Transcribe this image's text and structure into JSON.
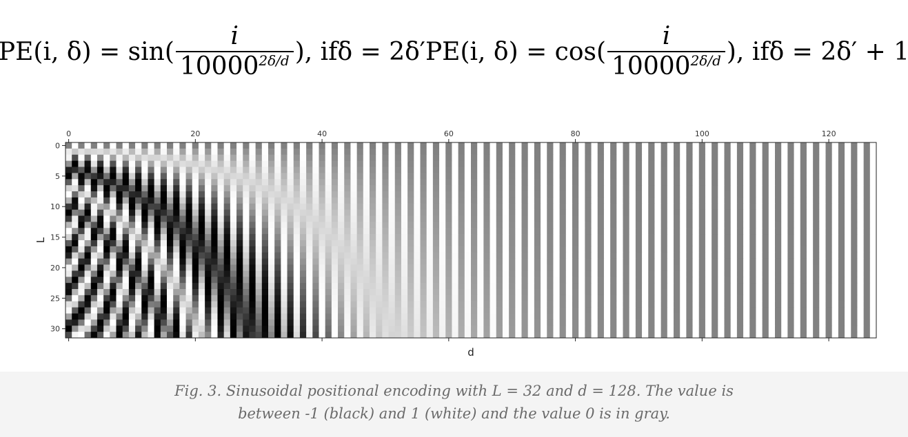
{
  "formula": {
    "part1": {
      "lhs": "PE(i, δ) = sin(",
      "numerator": "i",
      "denominator_base": "10000",
      "denominator_exp": "2δ/d",
      "rhs": "), ifδ = 2δ′"
    },
    "part2": {
      "lhs": "PE(i, δ) = cos(",
      "numerator": "i",
      "denominator_base": "10000",
      "denominator_exp": "2δ/d",
      "rhs": "), ifδ = 2δ′ + 1"
    }
  },
  "caption": {
    "line1": "Fig. 3. Sinusoidal positional encoding with L = 32 and d = 128. The value is",
    "line2": "between -1 (black) and 1 (white) and the value 0 is in gray."
  },
  "chart_data": {
    "type": "heatmap",
    "title": "",
    "xlabel": "d",
    "ylabel": "L",
    "rows": 32,
    "cols": 128,
    "formula_base": 10000,
    "xlim": [
      0,
      127
    ],
    "ylim": [
      0,
      31
    ],
    "xticks": [
      0,
      20,
      40,
      60,
      80,
      100,
      120
    ],
    "yticks": [
      0,
      5,
      10,
      15,
      20,
      25,
      30
    ],
    "x_axis_position": "top",
    "value_range": [
      -1,
      1
    ],
    "colormap": {
      "min_color": "#000000",
      "mid_color": "#808080",
      "max_color": "#ffffff"
    },
    "grid": false
  }
}
